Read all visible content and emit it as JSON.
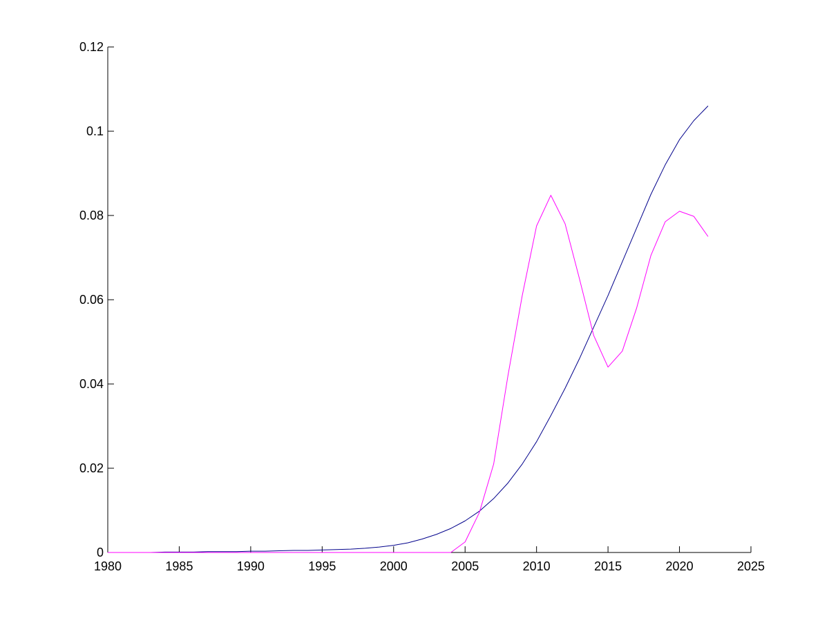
{
  "chart_data": {
    "type": "line",
    "title": "",
    "xlabel": "",
    "ylabel": "",
    "xlim": [
      1980,
      2025
    ],
    "ylim": [
      0,
      0.12
    ],
    "x_ticks": [
      1980,
      1985,
      1990,
      1995,
      2000,
      2005,
      2010,
      2015,
      2020,
      2025
    ],
    "x_tick_labels": [
      "1980",
      "1985",
      "1990",
      "1995",
      "2000",
      "2005",
      "2010",
      "2015",
      "2020",
      "2025"
    ],
    "y_ticks": [
      0,
      0.02,
      0.04,
      0.06,
      0.08,
      0.1,
      0.12
    ],
    "y_tick_labels": [
      "0",
      "0.02",
      "0.04",
      "0.06",
      "0.08",
      "0.1",
      "0.12"
    ],
    "grid": false,
    "legend": "none",
    "series": [
      {
        "color": "#00008b",
        "x": [
          1980,
          1981,
          1982,
          1983,
          1984,
          1985,
          1986,
          1987,
          1988,
          1989,
          1990,
          1991,
          1992,
          1993,
          1994,
          1995,
          1996,
          1997,
          1998,
          1999,
          2000,
          2001,
          2002,
          2003,
          2004,
          2005,
          2006,
          2007,
          2008,
          2009,
          2010,
          2011,
          2012,
          2013,
          2014,
          2015,
          2016,
          2017,
          2018,
          2019,
          2020,
          2021,
          2022
        ],
        "values": [
          0,
          0,
          0,
          0,
          0.0001,
          0.0001,
          0.0001,
          0.0002,
          0.0002,
          0.0002,
          0.0003,
          0.0003,
          0.0004,
          0.0005,
          0.0005,
          0.0006,
          0.0007,
          0.0008,
          0.001,
          0.0013,
          0.0017,
          0.0023,
          0.0032,
          0.0043,
          0.0057,
          0.0075,
          0.0098,
          0.0128,
          0.0165,
          0.021,
          0.0263,
          0.0325,
          0.039,
          0.046,
          0.0535,
          0.061,
          0.069,
          0.077,
          0.085,
          0.092,
          0.098,
          0.1025,
          0.106
        ]
      },
      {
        "color": "#ff00ff",
        "x": [
          1980,
          1985,
          1990,
          1995,
          2000,
          2004,
          2005,
          2006,
          2007,
          2008,
          2009,
          2010,
          2011,
          2012,
          2013,
          2014,
          2015,
          2016,
          2017,
          2018,
          2019,
          2020,
          2021,
          2022
        ],
        "values": [
          0,
          0,
          0,
          0,
          0,
          0,
          0.0025,
          0.0095,
          0.021,
          0.042,
          0.061,
          0.0775,
          0.0848,
          0.078,
          0.065,
          0.0515,
          0.044,
          0.0478,
          0.058,
          0.0705,
          0.0785,
          0.081,
          0.0798,
          0.075
        ]
      }
    ]
  }
}
